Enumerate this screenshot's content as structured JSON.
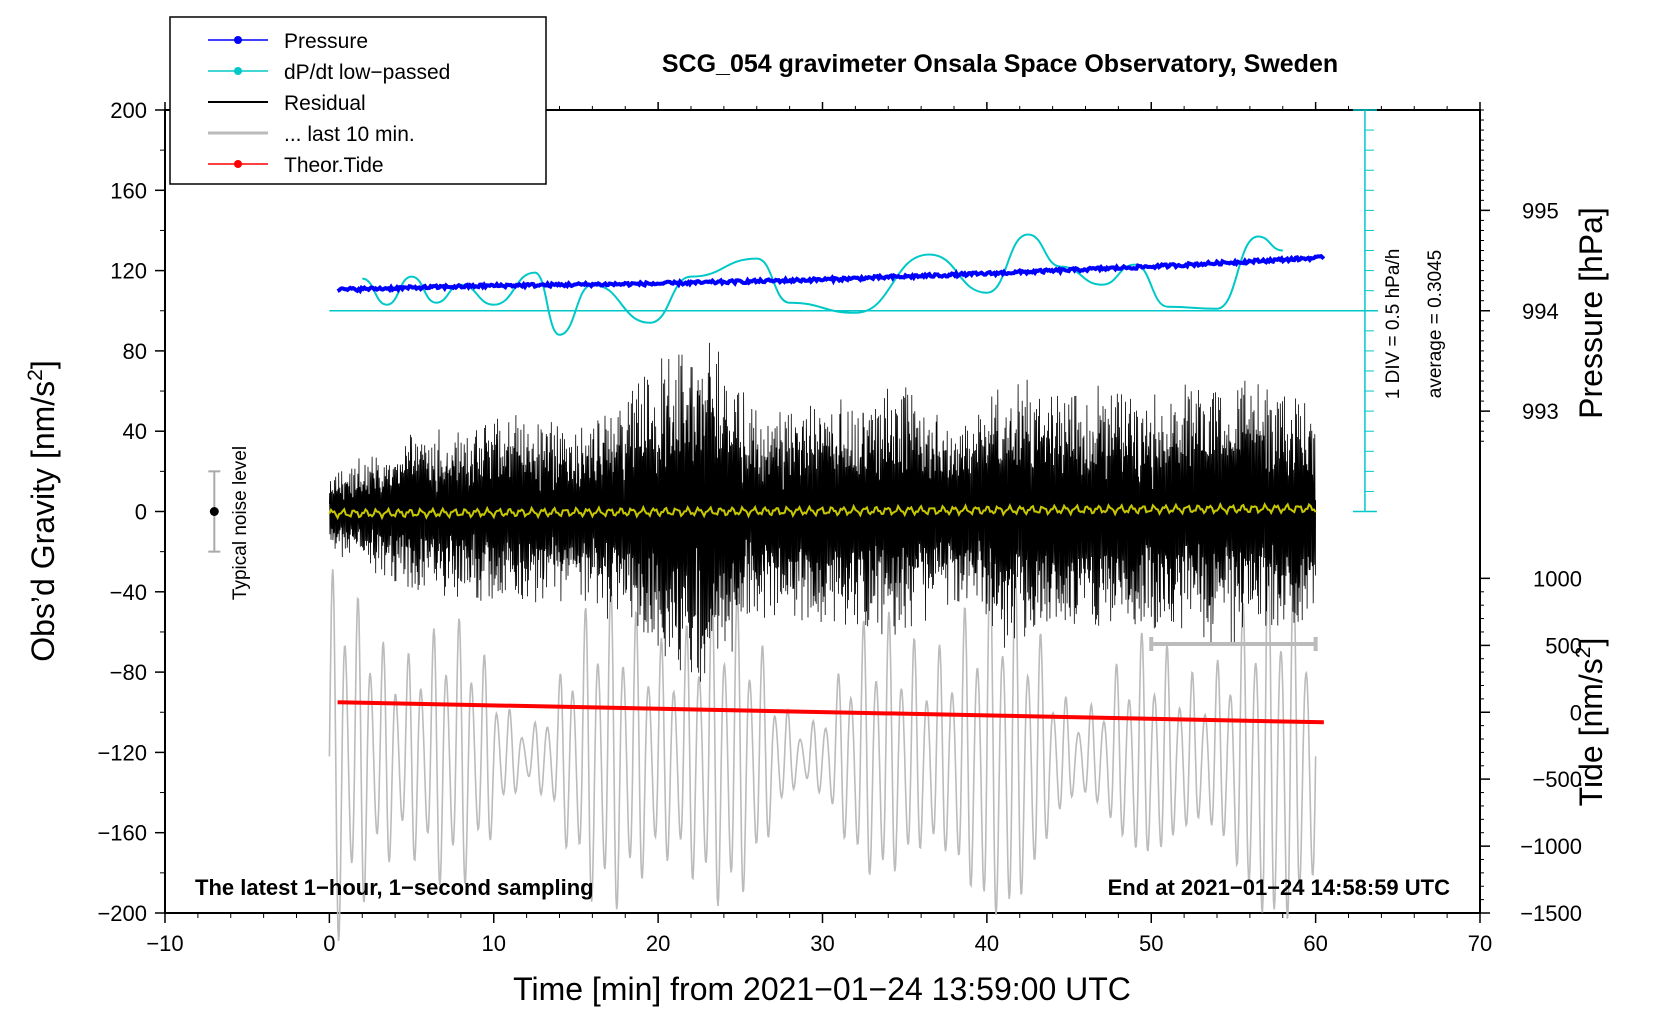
{
  "chart_data": {
    "type": "line",
    "title": "SCG_054 gravimeter Onsala Space Observatory, Sweden",
    "xlabel": "Time [min] from 2021−01−24 13:59:00 UTC",
    "ylabel_left": "Obs’d Gravity [nm/s²]",
    "ylabel_left_base": "Obs’d Gravity [nm/s",
    "ylabel_left_sup": "2",
    "ylabel_left_end": "]",
    "ylabel_right_top": "Pressure [hPa]",
    "ylabel_right_bottom": "Tide [nm/s²]",
    "ylabel_right_bottom_base": "Tide [nm/s",
    "ylabel_right_bottom_sup": "2",
    "ylabel_right_bottom_end": "]",
    "xlim": [
      -10,
      70
    ],
    "ylim": [
      -200,
      200
    ],
    "x_ticks": [
      -10,
      0,
      10,
      20,
      30,
      40,
      50,
      60,
      70
    ],
    "x_tick_labels": [
      "−10",
      "0",
      "10",
      "20",
      "30",
      "40",
      "50",
      "60",
      "70"
    ],
    "y_ticks": [
      200,
      160,
      120,
      80,
      40,
      0,
      -40,
      -80,
      -120,
      -160,
      -200
    ],
    "y_tick_labels": [
      "200",
      "160",
      "120",
      "80",
      "40",
      "0",
      "−40",
      "−80",
      "−120",
      "−160",
      "−200"
    ],
    "pressure_axis": {
      "ticks": [
        995,
        994,
        993
      ],
      "tick_labels": [
        "995",
        "994",
        "993"
      ],
      "gravity_equiv": [
        150,
        100,
        50
      ]
    },
    "tide_axis": {
      "ticks": [
        1000,
        500,
        0,
        -500,
        -1000,
        -1500
      ],
      "tick_labels": [
        "1000",
        "500",
        "0",
        "−500",
        "−1000",
        "−1500"
      ],
      "gravity_equiv": [
        -33.3,
        -66.7,
        -100,
        -133.3,
        -166.7,
        -200
      ]
    },
    "legend": {
      "placement": "top-left",
      "entries": [
        {
          "label": "Pressure",
          "color": "#0000ff",
          "marker": true
        },
        {
          "label": "dP/dt low−passed",
          "color": "#00c8c8",
          "marker": true
        },
        {
          "label": "Residual",
          "color": "#000000",
          "marker": false
        },
        {
          "label": "... last 10 min.",
          "color": "#bbbbbb",
          "marker": false
        },
        {
          "label": "Theor.Tide",
          "color": "#ff0000",
          "marker": true
        }
      ]
    },
    "series": [
      {
        "name": "Pressure",
        "color": "#0000ff",
        "x": [
          0.5,
          10,
          20,
          30,
          40,
          50,
          60.5
        ],
        "values": [
          110.5,
          112.5,
          113.5,
          115.5,
          118.5,
          122,
          126.5
        ]
      },
      {
        "name": "dP/dt low−passed",
        "color": "#00c8c8",
        "x": [
          2,
          3.5,
          5,
          6.5,
          8,
          10,
          12.5,
          14,
          16,
          19.5,
          22,
          26,
          28,
          32,
          36.5,
          40,
          42.5,
          44.5,
          47,
          49,
          51,
          54,
          56.5,
          58
        ],
        "values": [
          116,
          103,
          117,
          104,
          113,
          103,
          119,
          88,
          113,
          94,
          117,
          126,
          104,
          99,
          128,
          109,
          138,
          122,
          113,
          123,
          102,
          101,
          137,
          130
        ]
      },
      {
        "name": "Residual",
        "color": "#000000",
        "x_range": [
          0,
          60
        ],
        "envelope": [
          [
            0,
            20
          ],
          [
            5,
            40
          ],
          [
            10,
            50
          ],
          [
            15,
            45
          ],
          [
            18,
            60
          ],
          [
            22,
            92
          ],
          [
            23.5,
            85
          ],
          [
            26,
            55
          ],
          [
            30,
            58
          ],
          [
            35,
            65
          ],
          [
            38,
            45
          ],
          [
            41,
            70
          ],
          [
            45,
            65
          ],
          [
            50,
            60
          ],
          [
            55,
            70
          ],
          [
            60,
            55
          ]
        ]
      },
      {
        "name": "... last 10 min.",
        "color": "#bbbbbb",
        "x_range": [
          0,
          60
        ],
        "center": -122,
        "amplitude_range": [
          15,
          105
        ]
      },
      {
        "name": "Theor.Tide",
        "color": "#ff0000",
        "x": [
          0.5,
          60.5
        ],
        "values": [
          -95,
          -105
        ]
      },
      {
        "name": "Smoothed residual",
        "color": "#c8c800",
        "x_range": [
          0,
          60
        ],
        "values": [
          -1,
          1.5
        ]
      }
    ],
    "dpdt_scale": {
      "label": "1 DIV = 0.5 hPa/h",
      "average": "average = 0.3045",
      "baseline": 100,
      "top": 200,
      "bottom": 0,
      "x": 63
    },
    "noise_level": {
      "label": "Typical noise level",
      "x": -7,
      "center": 0,
      "low": -20,
      "high": 20
    },
    "last10_bracket": {
      "x_start": 50,
      "x_end": 60,
      "y": -66
    },
    "annotations": {
      "bottom_left": "The latest 1−hour, 1−second sampling",
      "bottom_right": "End at 2021−01−24 14:58:59 UTC"
    }
  }
}
